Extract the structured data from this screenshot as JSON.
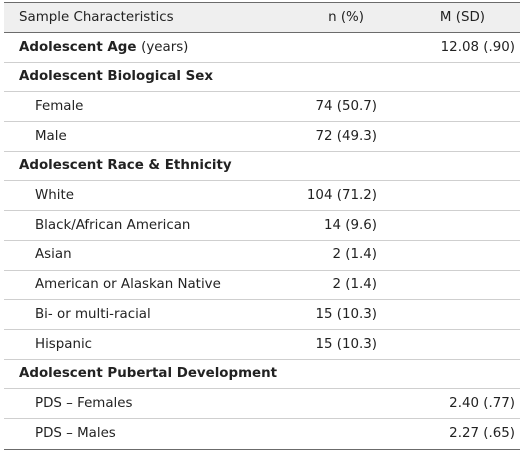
{
  "header": {
    "characteristics": "Sample Characteristics",
    "n_percent": "n (%)",
    "mean_sd": "M (SD)"
  },
  "rows": [
    {
      "label": "Adolescent Age",
      "unit": "(years)",
      "n": "",
      "m": "12.08 (.90)"
    },
    {
      "label": "Adolescent Biological Sex",
      "n": "",
      "m": ""
    },
    {
      "label": "Female",
      "n": "74 (50.7)",
      "m": ""
    },
    {
      "label": "Male",
      "n": "72 (49.3)",
      "m": ""
    },
    {
      "label": "Adolescent Race & Ethnicity",
      "n": "",
      "m": ""
    },
    {
      "label": "White",
      "n": "104 (71.2)",
      "m": ""
    },
    {
      "label": "Black/African American",
      "n": "14 (9.6)",
      "m": ""
    },
    {
      "label": "Asian",
      "n": "2 (1.4)",
      "m": ""
    },
    {
      "label": "American or Alaskan Native",
      "n": "2 (1.4)",
      "m": ""
    },
    {
      "label": "Bi- or multi-racial",
      "n": "15 (10.3)",
      "m": ""
    },
    {
      "label": "Hispanic",
      "n": "15 (10.3)",
      "m": ""
    },
    {
      "label": "Adolescent Pubertal Development",
      "n": "",
      "m": ""
    },
    {
      "label": "PDS – Females",
      "n": "",
      "m": "2.40 (.77)"
    },
    {
      "label": "PDS – Males",
      "n": "",
      "m": "2.27 (.65)"
    }
  ]
}
